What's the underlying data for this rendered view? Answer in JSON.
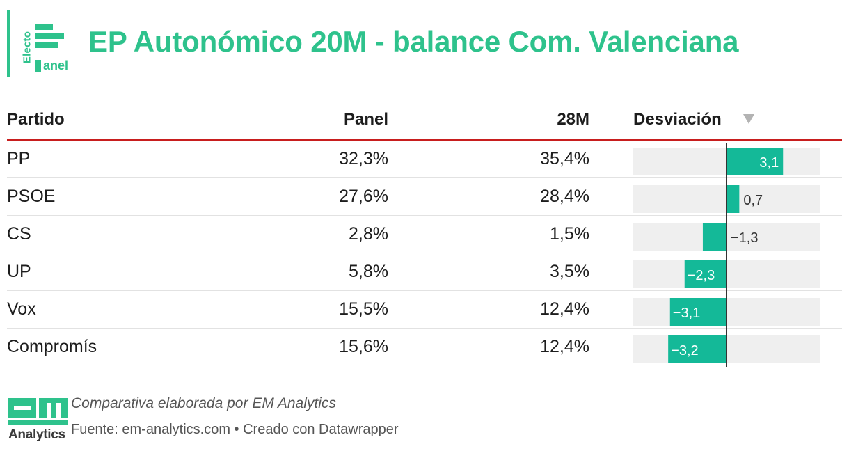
{
  "header": {
    "logo_text_vertical": "Electo",
    "logo_text": "anel",
    "title": "EP Autonómico 20M - balance Com. Valenciana"
  },
  "chart_data": {
    "type": "table",
    "columns": [
      "Partido",
      "Panel",
      "28M",
      "Desviación"
    ],
    "sorted_by": "Desviación",
    "rows": [
      {
        "partido": "PP",
        "panel": "32,3%",
        "m28": "35,4%",
        "desviacion": 3.1,
        "desviacion_label": "3,1"
      },
      {
        "partido": "PSOE",
        "panel": "27,6%",
        "m28": "28,4%",
        "desviacion": 0.7,
        "desviacion_label": "0,7"
      },
      {
        "partido": "CS",
        "panel": "2,8%",
        "m28": "1,5%",
        "desviacion": -1.3,
        "desviacion_label": "−1,3"
      },
      {
        "partido": "UP",
        "panel": "5,8%",
        "m28": "3,5%",
        "desviacion": -2.3,
        "desviacion_label": "−2,3"
      },
      {
        "partido": "Vox",
        "panel": "15,5%",
        "m28": "12,4%",
        "desviacion": -3.1,
        "desviacion_label": "−3,1"
      },
      {
        "partido": "Compromís",
        "panel": "15,6%",
        "m28": "12,4%",
        "desviacion": -3.2,
        "desviacion_label": "−3,2"
      }
    ],
    "bar_range": [
      -3.2,
      3.1
    ]
  },
  "footer": {
    "logo_text": "Analytics",
    "note": "Comparativa elaborada por EM Analytics",
    "source": "Fuente: em-analytics.com • Creado con Datawrapper"
  },
  "colors": {
    "accent": "#2ec28c",
    "bar": "#14b998",
    "bar_bg": "#efefef",
    "header_rule": "#c81e1e",
    "axis": "#333333"
  },
  "icons": {
    "sort": "sort-descending-icon"
  }
}
